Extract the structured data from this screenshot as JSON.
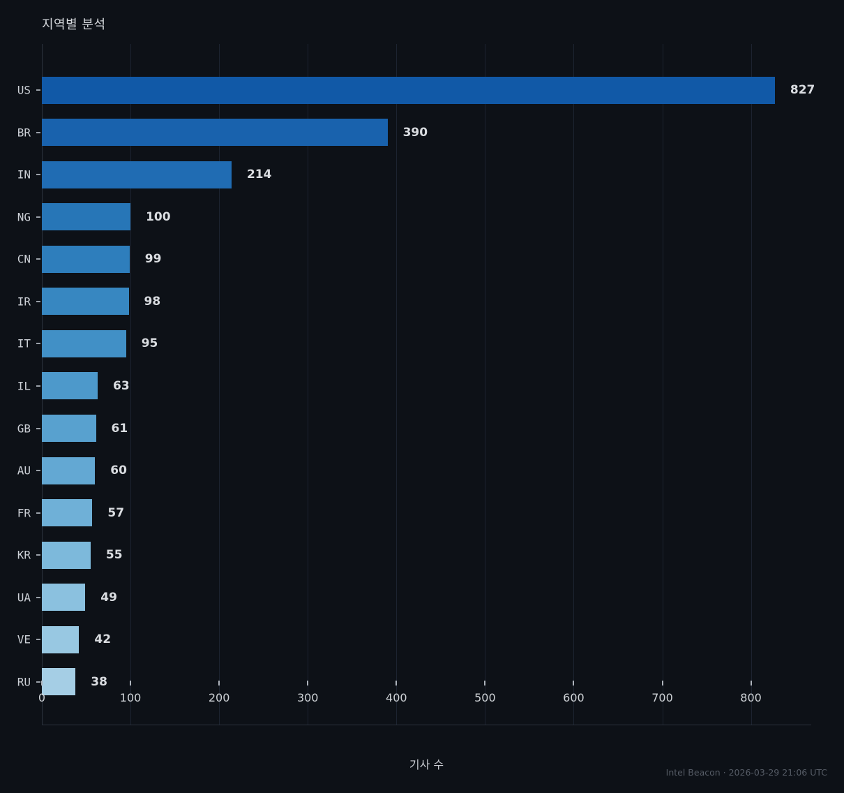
{
  "title": "지역별 분석",
  "x_axis_label": "기사 수",
  "footer": "Intel Beacon · 2026-03-29 21:06 UTC",
  "colors": {
    "background": "#0d1117",
    "gridline": "#1c2330",
    "spine": "#2b323d",
    "title_text": "#d5d8dc",
    "tick_text": "#ced2d6",
    "category_text": "#ccd0d6",
    "value_text": "#dadde1",
    "footer_text": "#565c66"
  },
  "chart_data": {
    "type": "bar",
    "orientation": "horizontal",
    "title": "지역별 분석",
    "xlabel": "기사 수",
    "ylabel": "",
    "categories": [
      "US",
      "BR",
      "IN",
      "NG",
      "CN",
      "IR",
      "IT",
      "IL",
      "GB",
      "AU",
      "FR",
      "KR",
      "UA",
      "VE",
      "RU"
    ],
    "values": [
      827,
      390,
      214,
      100,
      99,
      98,
      95,
      63,
      61,
      60,
      57,
      55,
      49,
      42,
      38
    ],
    "bar_colors": [
      "#1159a7",
      "#1962ad",
      "#206cb3",
      "#2776b7",
      "#2e7ebc",
      "#3787c1",
      "#4190c6",
      "#4d99cb",
      "#58a1cf",
      "#63a8d3",
      "#6fb0d7",
      "#7db9db",
      "#8bc1df",
      "#98c8e2",
      "#a5cee5"
    ],
    "xlim": [
      0,
      868
    ],
    "xticks": [
      0,
      100,
      200,
      300,
      400,
      500,
      600,
      700,
      800
    ],
    "grid": "vertical",
    "legend": "none",
    "value_labels": "end-of-bar",
    "footer": "Intel Beacon · 2026-03-29 21:06 UTC"
  }
}
